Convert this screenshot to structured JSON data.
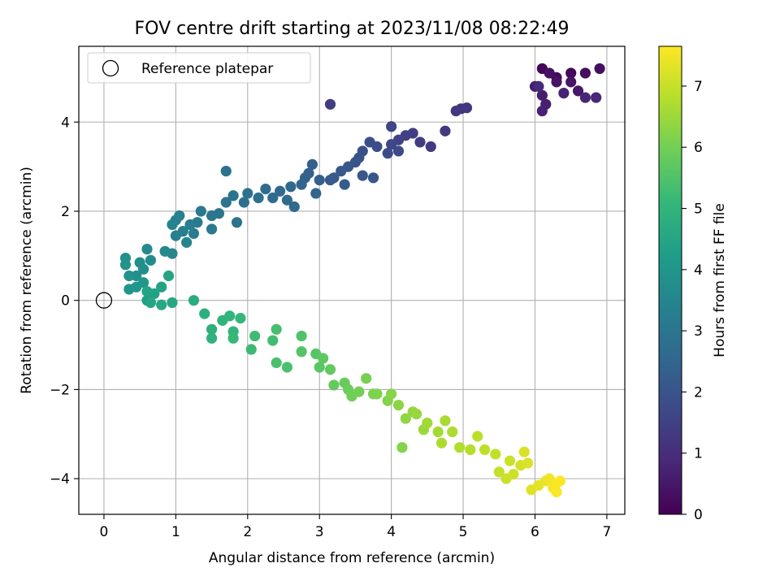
{
  "chart_data": {
    "type": "scatter",
    "title": "FOV centre drift starting at 2023/11/08 08:22:49",
    "xlabel": "Angular distance from reference (arcmin)",
    "ylabel": "Rotation from reference (arcmin)",
    "xlim": [
      -0.35,
      7.25
    ],
    "ylim": [
      -4.8,
      5.7
    ],
    "xticks": [
      "0",
      "1",
      "2",
      "3",
      "4",
      "5",
      "6",
      "7"
    ],
    "yticks": [
      "−4",
      "−2",
      "0",
      "2",
      "4"
    ],
    "grid": true,
    "legend": {
      "placement": "top-left",
      "entries": [
        "Reference platepar"
      ]
    },
    "reference": {
      "x": 0,
      "y": 0,
      "label": "Reference platepar"
    },
    "colorbar": {
      "label": "Hours from first FF file",
      "colormap": "viridis",
      "range": [
        0,
        7.65
      ],
      "ticks": [
        "0",
        "1",
        "2",
        "3",
        "4",
        "5",
        "6",
        "7"
      ]
    },
    "colors": [
      "#440154",
      "#482878",
      "#3e4989",
      "#31688e",
      "#26828e",
      "#1f9e89",
      "#35b779",
      "#6ece58",
      "#b5de2b",
      "#fde725"
    ],
    "points": [
      [
        6.1,
        5.2,
        0.1
      ],
      [
        6.3,
        5.0,
        0.2
      ],
      [
        6.5,
        5.1,
        0.15
      ],
      [
        6.7,
        5.1,
        0.25
      ],
      [
        6.9,
        5.2,
        0.3
      ],
      [
        6.2,
        5.1,
        0.35
      ],
      [
        6.3,
        4.9,
        0.4
      ],
      [
        6.5,
        4.9,
        0.45
      ],
      [
        6.6,
        4.7,
        0.5
      ],
      [
        6.0,
        4.8,
        0.55
      ],
      [
        6.1,
        4.6,
        0.6
      ],
      [
        6.15,
        4.4,
        0.65
      ],
      [
        6.1,
        4.25,
        0.7
      ],
      [
        6.4,
        4.65,
        0.75
      ],
      [
        6.7,
        4.55,
        0.8
      ],
      [
        6.85,
        4.55,
        0.85
      ],
      [
        6.05,
        4.8,
        0.9
      ],
      [
        4.97,
        4.3,
        1.15
      ],
      [
        5.05,
        4.32,
        1.2
      ],
      [
        4.9,
        4.25,
        1.25
      ],
      [
        4.75,
        3.8,
        1.3
      ],
      [
        4.55,
        3.45,
        1.35
      ],
      [
        4.4,
        3.55,
        1.4
      ],
      [
        4.3,
        3.75,
        1.45
      ],
      [
        4.2,
        3.7,
        1.5
      ],
      [
        4.1,
        3.6,
        1.55
      ],
      [
        4.0,
        3.9,
        1.6
      ],
      [
        4.0,
        3.5,
        1.65
      ],
      [
        4.1,
        3.35,
        1.7
      ],
      [
        3.95,
        3.3,
        1.75
      ],
      [
        3.8,
        3.45,
        1.8
      ],
      [
        3.7,
        3.55,
        1.85
      ],
      [
        3.6,
        3.35,
        1.9
      ],
      [
        3.55,
        3.2,
        1.95
      ],
      [
        3.5,
        3.1,
        2.0
      ],
      [
        3.4,
        3.0,
        2.05
      ],
      [
        3.3,
        2.9,
        2.1
      ],
      [
        3.2,
        2.75,
        2.15
      ],
      [
        3.15,
        2.7,
        2.2
      ],
      [
        3.15,
        4.4,
        1.4
      ],
      [
        3.75,
        2.75,
        2.05
      ],
      [
        3.6,
        2.8,
        2.1
      ],
      [
        3.35,
        2.6,
        2.2
      ],
      [
        3.0,
        2.7,
        2.3
      ],
      [
        2.9,
        3.05,
        2.35
      ],
      [
        2.85,
        2.85,
        2.35
      ],
      [
        2.8,
        2.75,
        2.4
      ],
      [
        2.75,
        2.6,
        2.45
      ],
      [
        2.95,
        2.4,
        2.5
      ],
      [
        2.6,
        2.55,
        2.55
      ],
      [
        2.45,
        2.45,
        2.6
      ],
      [
        2.35,
        2.3,
        2.65
      ],
      [
        2.25,
        2.5,
        2.7
      ],
      [
        2.15,
        2.3,
        2.75
      ],
      [
        2.0,
        2.4,
        2.8
      ],
      [
        1.95,
        2.2,
        2.85
      ],
      [
        1.8,
        2.35,
        2.9
      ],
      [
        1.7,
        2.2,
        2.95
      ],
      [
        1.7,
        2.9,
        2.9
      ],
      [
        1.6,
        1.95,
        3.0
      ],
      [
        1.5,
        1.9,
        3.05
      ],
      [
        1.35,
        2.0,
        3.1
      ],
      [
        1.3,
        1.75,
        3.15
      ],
      [
        1.25,
        1.5,
        3.2
      ],
      [
        1.2,
        1.7,
        3.25
      ],
      [
        1.1,
        1.55,
        3.3
      ],
      [
        1.0,
        1.45,
        3.35
      ],
      [
        1.0,
        1.8,
        3.35
      ],
      [
        1.05,
        1.9,
        3.4
      ],
      [
        0.95,
        1.7,
        3.45
      ],
      [
        1.15,
        1.3,
        3.5
      ],
      [
        0.95,
        1.05,
        3.55
      ],
      [
        0.85,
        1.1,
        3.6
      ],
      [
        0.6,
        1.15,
        3.65
      ],
      [
        0.65,
        0.9,
        3.7
      ],
      [
        0.5,
        0.85,
        3.75
      ],
      [
        0.55,
        0.7,
        3.8
      ],
      [
        0.45,
        0.55,
        3.85
      ],
      [
        0.35,
        0.55,
        3.9
      ],
      [
        0.3,
        0.95,
        3.85
      ],
      [
        0.3,
        0.8,
        3.9
      ],
      [
        0.35,
        0.25,
        3.95
      ],
      [
        0.45,
        0.3,
        4.0
      ],
      [
        0.55,
        0.4,
        4.05
      ],
      [
        2.65,
        2.1,
        2.6
      ],
      [
        2.55,
        2.25,
        2.65
      ],
      [
        1.85,
        1.75,
        2.9
      ],
      [
        1.5,
        1.6,
        3.1
      ],
      [
        0.6,
        0.0,
        4.3
      ],
      [
        0.7,
        0.15,
        4.35
      ],
      [
        0.8,
        0.3,
        4.4
      ],
      [
        0.9,
        0.55,
        4.45
      ],
      [
        0.65,
        -0.05,
        4.5
      ],
      [
        0.8,
        -0.1,
        4.55
      ],
      [
        0.95,
        -0.05,
        4.6
      ],
      [
        0.6,
        0.2,
        4.4
      ],
      [
        1.25,
        0.0,
        4.7
      ],
      [
        1.4,
        -0.3,
        4.8
      ],
      [
        1.5,
        -0.65,
        4.85
      ],
      [
        1.5,
        -0.85,
        4.9
      ],
      [
        1.65,
        -0.45,
        4.95
      ],
      [
        1.75,
        -0.35,
        5.0
      ],
      [
        1.8,
        -0.7,
        5.05
      ],
      [
        1.9,
        -0.4,
        5.1
      ],
      [
        1.8,
        -0.85,
        5.15
      ],
      [
        2.05,
        -1.1,
        5.2
      ],
      [
        2.1,
        -0.8,
        5.25
      ],
      [
        2.35,
        -0.9,
        5.3
      ],
      [
        2.4,
        -0.65,
        5.35
      ],
      [
        2.4,
        -1.4,
        5.4
      ],
      [
        2.55,
        -1.5,
        5.45
      ],
      [
        2.75,
        -0.8,
        5.5
      ],
      [
        2.75,
        -1.15,
        5.55
      ],
      [
        2.95,
        -1.2,
        5.6
      ],
      [
        3.0,
        -1.5,
        5.65
      ],
      [
        3.05,
        -1.3,
        5.7
      ],
      [
        3.15,
        -1.55,
        5.75
      ],
      [
        3.2,
        -1.9,
        5.8
      ],
      [
        3.35,
        -1.85,
        5.85
      ],
      [
        3.4,
        -2.0,
        5.9
      ],
      [
        3.45,
        -2.15,
        5.95
      ],
      [
        3.55,
        -2.05,
        6.0
      ],
      [
        3.65,
        -1.75,
        6.05
      ],
      [
        3.75,
        -2.1,
        6.1
      ],
      [
        3.8,
        -2.1,
        6.15
      ],
      [
        3.95,
        -2.25,
        6.2
      ],
      [
        4.0,
        -2.1,
        6.25
      ],
      [
        4.1,
        -2.35,
        6.3
      ],
      [
        4.2,
        -2.65,
        6.35
      ],
      [
        4.3,
        -2.5,
        6.4
      ],
      [
        4.35,
        -2.55,
        6.45
      ],
      [
        4.45,
        -2.9,
        6.5
      ],
      [
        4.5,
        -2.75,
        6.55
      ],
      [
        4.65,
        -2.95,
        6.6
      ],
      [
        4.75,
        -2.7,
        6.65
      ],
      [
        4.85,
        -2.95,
        6.7
      ],
      [
        4.95,
        -3.3,
        6.75
      ],
      [
        5.1,
        -3.35,
        6.8
      ],
      [
        5.2,
        -3.05,
        6.85
      ],
      [
        5.3,
        -3.35,
        6.9
      ],
      [
        5.45,
        -3.45,
        6.95
      ],
      [
        5.5,
        -3.85,
        7.0
      ],
      [
        5.6,
        -4.0,
        7.05
      ],
      [
        5.7,
        -3.9,
        7.1
      ],
      [
        5.8,
        -3.7,
        7.15
      ],
      [
        5.85,
        -3.4,
        7.2
      ],
      [
        5.9,
        -3.65,
        7.25
      ],
      [
        5.95,
        -4.25,
        7.3
      ],
      [
        6.05,
        -4.15,
        7.35
      ],
      [
        6.15,
        -4.05,
        7.45
      ],
      [
        6.2,
        -4.0,
        7.5
      ],
      [
        6.25,
        -4.2,
        7.55
      ],
      [
        6.3,
        -4.1,
        7.6
      ],
      [
        6.3,
        -4.3,
        7.62
      ],
      [
        6.35,
        -4.05,
        7.65
      ],
      [
        4.15,
        -3.3,
        6.2
      ],
      [
        5.65,
        -3.6,
        7.05
      ],
      [
        4.7,
        -3.2,
        6.7
      ]
    ]
  }
}
